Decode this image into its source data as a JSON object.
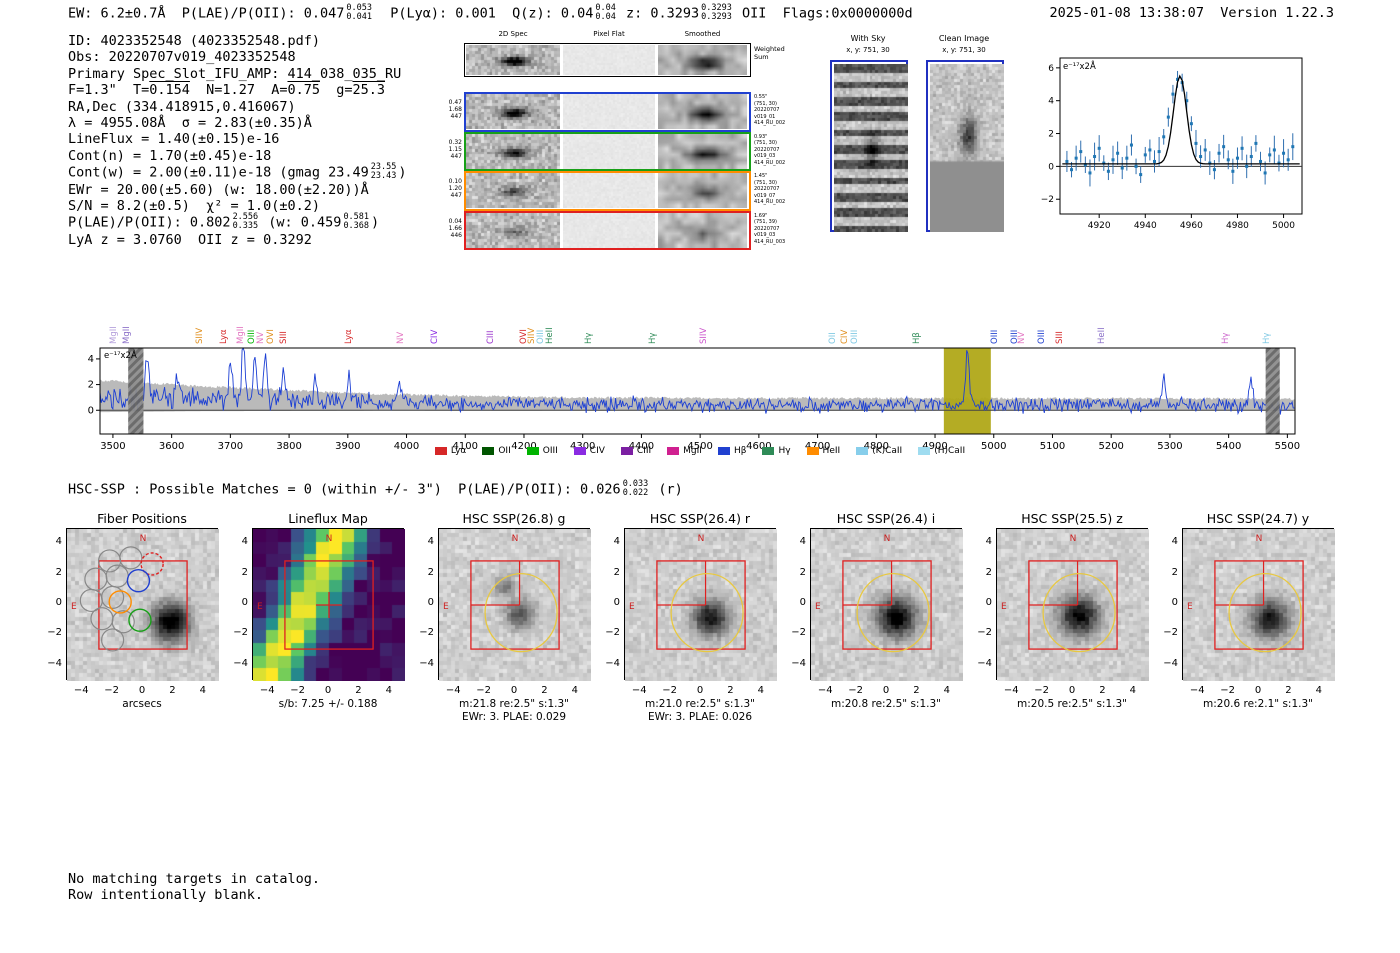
{
  "header": {
    "segments": [
      {
        "t": "EW: 6.2±0.7Å  P(LAE)/P(OII): 0.047"
      },
      {
        "frac": [
          "0.053",
          "0.041"
        ]
      },
      {
        "t": "  P(Lyα): 0.001  Q(z): 0.04"
      },
      {
        "frac": [
          "0.04",
          "0.04"
        ]
      },
      {
        "t": " z: 0.3293"
      },
      {
        "frac": [
          "0.3293",
          "0.3293"
        ]
      },
      {
        "t": " OII  Flags:0x0000000d"
      }
    ],
    "right": "2025-01-08 13:38:07  Version 1.22.3"
  },
  "info": {
    "lines": [
      [
        {
          "t": "ID: 4023352548 (4023352548.pdf)"
        }
      ],
      [
        {
          "t": "Obs: 20220707v019_4023352548"
        }
      ],
      [
        {
          "t": "Primary Spec_Slot_IFU_AMP: 414_038_035_RU"
        }
      ],
      [
        {
          "t": "F=1.3\"  T="
        },
        {
          "ol": "0.154"
        },
        {
          "t": "  N=1.27  A="
        },
        {
          "ol": "0.75"
        },
        {
          "t": "  g="
        },
        {
          "ol": "25.3"
        }
      ],
      [
        {
          "t": "RA,Dec (334.418915,0.416067)"
        }
      ],
      [
        {
          "t": "λ = 4955.08Å  σ = 2.83(±0.35)Å"
        }
      ],
      [
        {
          "t": "LineFlux = 1.40(±0.15)e-16"
        }
      ],
      [
        {
          "t": "Cont(n) = 1.70(±0.45)e-18"
        }
      ],
      [
        {
          "t": "Cont(w) = 2.00(±0.11)e-18 (gmag 23.49"
        },
        {
          "frac": [
            "23.55",
            "23.43"
          ]
        },
        {
          "t": ")"
        }
      ],
      [
        {
          "t": "EWr = 20.00(±5.60) (w: 18.00(±2.20))Å"
        }
      ],
      [
        {
          "t": "S/N = 8.2(±0.5)  χ² = 1.0(±0.2)"
        }
      ],
      [
        {
          "t": "P(LAE)/P(OII): 0.802"
        },
        {
          "frac": [
            "2.556",
            "0.335"
          ]
        },
        {
          "t": " (w: 0.459"
        },
        {
          "frac": [
            "0.581",
            "0.368"
          ]
        },
        {
          "t": ")"
        }
      ],
      [
        {
          "t": "LyA z = 3.0760  OII z = 0.3292"
        }
      ]
    ]
  },
  "spec2d": {
    "col_titles": [
      "2D Spec",
      "Pixel Flat",
      "Smoothed"
    ],
    "weighted_label": "Weighted\nSum",
    "rows": [
      {
        "left": "0.47\n1.68\n447",
        "right": "0.55\"\n(751, 30)\n20220707\nv019_01\n414_RU_002",
        "border": "#2040d0"
      },
      {
        "left": "0.32\n1.15\n447",
        "right": "0.93\"\n(751, 30)\n20220707\nv019_03\n414_RU_002",
        "border": "#18a018"
      },
      {
        "left": "0.10\n1.20\n447",
        "right": "1.45\"\n(751, 30)\n20220707\nv019_07\n414_RU_002",
        "border": "#ff8c00"
      },
      {
        "left": "0.04\n1.66\n446",
        "right": "1.69\"\n(751, 39)\n20220707\nv019_03\n414_RU_003",
        "border": "#e02020"
      }
    ]
  },
  "withsky": {
    "title": "With Sky",
    "xy": "x, y: 751, 30"
  },
  "clean": {
    "title": "Clean Image",
    "xy": "x, y: 751, 30"
  },
  "chart_data": [
    {
      "id": "line_fit_zoom",
      "type": "scatter",
      "ylabel": "e⁻¹⁷x2Å",
      "xlim": [
        4903,
        5008
      ],
      "ylim": [
        -2.9,
        6.6
      ],
      "xticks": [
        4920,
        4940,
        4960,
        4980,
        5000
      ],
      "yticks": [
        -2,
        0,
        2,
        4,
        6
      ],
      "gaussian_fit": {
        "center": 4955.08,
        "sigma": 2.83,
        "peak": 5.35,
        "baseline": 0.15
      },
      "x": [
        4906,
        4908,
        4910,
        4912,
        4914,
        4916,
        4918,
        4920,
        4922,
        4924,
        4926,
        4928,
        4930,
        4932,
        4934,
        4936,
        4938,
        4940,
        4942,
        4944,
        4946,
        4948,
        4950,
        4952,
        4954,
        4956,
        4958,
        4960,
        4962,
        4964,
        4966,
        4968,
        4970,
        4972,
        4974,
        4976,
        4978,
        4980,
        4982,
        4984,
        4986,
        4988,
        4990,
        4992,
        4994,
        4996,
        4998,
        5000,
        5002,
        5004
      ],
      "y": [
        0.3,
        -0.2,
        0.5,
        0.9,
        0.1,
        -0.4,
        0.6,
        1.1,
        0.2,
        -0.3,
        0.4,
        0.8,
        -0.1,
        0.5,
        1.3,
        0.0,
        -0.5,
        0.7,
        1.0,
        0.3,
        0.9,
        1.8,
        3.0,
        4.4,
        5.3,
        5.1,
        4.0,
        2.6,
        1.4,
        0.6,
        1.0,
        0.2,
        -0.2,
        0.8,
        1.2,
        0.4,
        -0.3,
        0.5,
        1.1,
        0.0,
        0.6,
        1.4,
        0.3,
        -0.4,
        0.7,
        1.0,
        0.2,
        0.8,
        0.4,
        1.2
      ],
      "yerr_typical": 0.7
    },
    {
      "id": "full_spectrum",
      "type": "line",
      "ylabel": "e⁻¹⁷x2Å",
      "xlim": [
        3478,
        5513
      ],
      "ylim": [
        -1.85,
        4.85
      ],
      "xticks": [
        3500,
        3600,
        3700,
        3800,
        3900,
        4000,
        4100,
        4200,
        4300,
        4400,
        4500,
        4600,
        4700,
        4800,
        4900,
        5000,
        5100,
        5200,
        5300,
        5400,
        5500
      ],
      "yticks": [
        0,
        2,
        4
      ],
      "highlight_band": {
        "x0": 4915,
        "x1": 4995,
        "color": "#b0a818"
      },
      "masked_bands": [
        [
          3526,
          3552
        ],
        [
          5463,
          5487
        ]
      ],
      "continuum_levels": [
        [
          3478,
          1.0
        ],
        [
          3620,
          0.85
        ],
        [
          3900,
          0.6
        ],
        [
          4200,
          0.45
        ],
        [
          4600,
          0.4
        ],
        [
          5513,
          0.4
        ]
      ],
      "error_band_halfwidth": [
        [
          3478,
          1.35
        ],
        [
          3650,
          1.05
        ],
        [
          3950,
          0.7
        ],
        [
          4300,
          0.55
        ],
        [
          5513,
          0.5
        ]
      ],
      "noise_amplitude": 0.45,
      "peaks": [
        [
          3558,
          3.2
        ],
        [
          3610,
          2.0
        ],
        [
          3700,
          2.8
        ],
        [
          3722,
          4.4
        ],
        [
          3742,
          3.2
        ],
        [
          3760,
          4.0
        ],
        [
          3790,
          2.2
        ],
        [
          3845,
          1.8
        ],
        [
          3902,
          2.2
        ],
        [
          3988,
          1.9
        ],
        [
          4955,
          4.4
        ],
        [
          5290,
          2.3
        ],
        [
          5438,
          1.9
        ]
      ],
      "line_labels": [
        {
          "wl": 3502,
          "label": "MgII",
          "color": "#b39ddb",
          "tall": false
        },
        {
          "wl": 3524,
          "label": "MgII",
          "color": "#8a6fc8",
          "tall": false
        },
        {
          "wl": 3648,
          "label": "SIIV",
          "color": "#e09020",
          "tall": false
        },
        {
          "wl": 3689,
          "label": "Lyα",
          "color": "#d62728",
          "tall": false
        },
        {
          "wl": 3718,
          "label": "MgII",
          "color": "#e377c2",
          "tall": false
        },
        {
          "wl": 3737,
          "label": "OIII",
          "color": "#00b300",
          "tall": true
        },
        {
          "wl": 3753,
          "label": "NV",
          "color": "#e377c2",
          "tall": false
        },
        {
          "wl": 3770,
          "label": "OVI",
          "color": "#e09020",
          "tall": false
        },
        {
          "wl": 3792,
          "label": "SIII",
          "color": "#d62728",
          "tall": false
        },
        {
          "wl": 3902,
          "label": "Lyα",
          "color": "#d62728",
          "tall": false
        },
        {
          "wl": 3990,
          "label": "NV",
          "color": "#e377c2",
          "tall": false
        },
        {
          "wl": 4048,
          "label": "CIV",
          "color": "#8a2be2",
          "tall": false
        },
        {
          "wl": 4143,
          "label": "CIII",
          "color": "#9932cc",
          "tall": false
        },
        {
          "wl": 4200,
          "label": "OVI",
          "color": "#d62728",
          "tall": false
        },
        {
          "wl": 4214,
          "label": "SIIV",
          "color": "#e09020",
          "tall": true
        },
        {
          "wl": 4229,
          "label": "OIII",
          "color": "#7ec8e3",
          "tall": true
        },
        {
          "wl": 4244,
          "label": "HeII",
          "color": "#2e8b57",
          "tall": false
        },
        {
          "wl": 4310,
          "label": "Hγ",
          "color": "#2e8b57",
          "tall": false
        },
        {
          "wl": 4420,
          "label": "Hγ",
          "color": "#2e8b57",
          "tall": false
        },
        {
          "wl": 4506,
          "label": "SIIV",
          "color": "#cc55cc",
          "tall": false
        },
        {
          "wl": 4726,
          "label": "OII",
          "color": "#7ec8e3",
          "tall": false
        },
        {
          "wl": 4746,
          "label": "CIV",
          "color": "#e09020",
          "tall": false
        },
        {
          "wl": 4764,
          "label": "OIII",
          "color": "#7ec8e3",
          "tall": false
        },
        {
          "wl": 4870,
          "label": "Hβ",
          "color": "#2e8b57",
          "tall": false
        },
        {
          "wl": 5002,
          "label": "OIII",
          "color": "#2040d0",
          "tall": false
        },
        {
          "wl": 5036,
          "label": "OIII",
          "color": "#2040d0",
          "tall": true
        },
        {
          "wl": 5048,
          "label": "NV",
          "color": "#e377c2",
          "tall": false
        },
        {
          "wl": 5082,
          "label": "OIII",
          "color": "#2040d0",
          "tall": false
        },
        {
          "wl": 5112,
          "label": "SIII",
          "color": "#d62728",
          "tall": false
        },
        {
          "wl": 5185,
          "label": "HeII",
          "color": "#8a6fc8",
          "tall": false
        },
        {
          "wl": 5396,
          "label": "Hγ",
          "color": "#cc66cc",
          "tall": false
        },
        {
          "wl": 5465,
          "label": "Hγ",
          "color": "#7ec8e3",
          "tall": false
        }
      ],
      "legend": [
        {
          "label": "Lyα",
          "color": "#d62728"
        },
        {
          "label": "OII",
          "color": "#005500"
        },
        {
          "label": "OIII",
          "color": "#00b300"
        },
        {
          "label": "CIV",
          "color": "#8a2be2"
        },
        {
          "label": "CIII",
          "color": "#7b1fa2"
        },
        {
          "label": "MgII",
          "color": "#d02090"
        },
        {
          "label": "Hβ",
          "color": "#2040d0"
        },
        {
          "label": "Hγ",
          "color": "#2e8b57"
        },
        {
          "label": "HeII",
          "color": "#ff8c00"
        },
        {
          "label": "(K)CaII",
          "color": "#87ceeb"
        },
        {
          "label": "(H)CaII",
          "color": "#9fdcf0"
        }
      ]
    }
  ],
  "hsc_line": {
    "segments": [
      {
        "t": "HSC-SSP : Possible Matches = 0 (within +/- 3\")  P(LAE)/P(OII): 0.026"
      },
      {
        "frac": [
          "0.033",
          "0.022"
        ]
      },
      {
        "t": " (r)"
      }
    ]
  },
  "cutouts": {
    "axis_ticks": [
      -4,
      -2,
      0,
      2,
      4
    ],
    "compass": {
      "north": "N",
      "east": "E"
    },
    "panels": [
      {
        "kind": "fiber",
        "title": "Fiber Positions",
        "xlabel": "arcsecs",
        "captions": []
      },
      {
        "kind": "map",
        "title": "Lineflux Map",
        "captions": [
          "s/b: 7.25 +/- 0.188"
        ]
      },
      {
        "kind": "hsc",
        "title": "HSC SSP(26.8) g",
        "captions": [
          "m:21.8 re:2.5\" s:1.3\"",
          "EWr: 3. PLAE: 0.029"
        ]
      },
      {
        "kind": "hsc",
        "title": "HSC SSP(26.4) r",
        "captions": [
          "m:21.0 re:2.5\" s:1.3\"",
          "EWr: 3. PLAE: 0.026"
        ]
      },
      {
        "kind": "hsc",
        "title": "HSC SSP(26.4) i",
        "captions": [
          "m:20.8 re:2.5\" s:1.3\""
        ]
      },
      {
        "kind": "hsc",
        "title": "HSC SSP(25.5) z",
        "captions": [
          "m:20.5 re:2.5\" s:1.3\""
        ]
      },
      {
        "kind": "hsc",
        "title": "HSC SSP(24.7) y",
        "captions": [
          "m:20.6 re:2.1\" s:1.3\""
        ]
      }
    ]
  },
  "footer": [
    "No matching targets in catalog.",
    "Row intentionally blank."
  ]
}
